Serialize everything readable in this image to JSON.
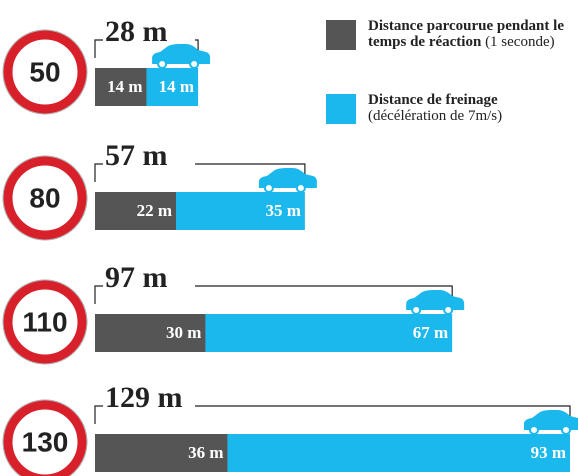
{
  "chart_data": {
    "type": "stacked-bar-horizontal",
    "categories": [
      "50",
      "80",
      "110",
      "130"
    ],
    "totals": [
      28,
      57,
      97,
      129
    ],
    "total_labels": [
      "28 m",
      "57 m",
      "97 m",
      "129 m"
    ],
    "xlim": [
      0,
      129
    ],
    "series": [
      {
        "name": "Distance parcourue pendant le temps de réaction",
        "note": "(1 seconde)",
        "color": "#555555",
        "values": [
          14,
          22,
          30,
          36
        ],
        "value_labels": [
          "14 m",
          "22 m",
          "30 m",
          "36 m"
        ]
      },
      {
        "name": "Distance de freinage",
        "note": "(décélération de 7m/s)",
        "color": "#1ab8ec",
        "values": [
          14,
          35,
          67,
          93
        ],
        "value_labels": [
          "14 m",
          "35 m",
          "67 m",
          "93 m"
        ]
      }
    ]
  }
}
